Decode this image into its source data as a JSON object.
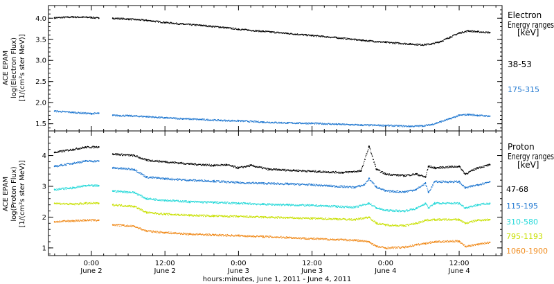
{
  "x_axis": {
    "title": "hours:minutes, June  1, 2011 - June  4, 2011",
    "ticks": [
      {
        "t": 24,
        "time": "0:00",
        "date": "June 2"
      },
      {
        "t": 36,
        "time": "12:00",
        "date": "June 2"
      },
      {
        "t": 48,
        "time": "0:00",
        "date": "June 3"
      },
      {
        "t": 60,
        "time": "12:00",
        "date": "June 3"
      },
      {
        "t": 72,
        "time": "0:00",
        "date": "June 4"
      },
      {
        "t": 84,
        "time": "12:00",
        "date": "June 4"
      }
    ]
  },
  "panels": [
    {
      "ylabel": [
        "ACE EPAM",
        "log(Electron Flux)",
        "[1/(cm²s ster MeV)]"
      ],
      "legend_title": [
        "Electron",
        "Energy ranges",
        "[keV]"
      ],
      "yticks": [
        "1.5",
        "2.0",
        "2.5",
        "3.0",
        "3.5",
        "4.0"
      ]
    },
    {
      "ylabel": [
        "ACE EPAM",
        "log(Proton Flux)",
        "[1/(cm²s ster MeV)]"
      ],
      "legend_title": [
        "Proton",
        "Energy ranges",
        "[keV]"
      ],
      "yticks": [
        "1",
        "2",
        "3",
        "4"
      ]
    }
  ],
  "chart_data": [
    {
      "type": "scatter",
      "x_unit": "hours since 2011-06-01 00:00",
      "xlim": [
        17,
        91
      ],
      "ylim": [
        1.33,
        4.3
      ],
      "grid": false,
      "legend_position": "right",
      "series": [
        {
          "name": "38-53",
          "color": "#000000",
          "points": [
            [
              18,
              4.01
            ],
            [
              21,
              4.03
            ],
            [
              24,
              4.02
            ],
            [
              25.2,
              4.0
            ],
            [
              27.5,
              4.0
            ],
            [
              30,
              3.98
            ],
            [
              33,
              3.95
            ],
            [
              36,
              3.9
            ],
            [
              39,
              3.86
            ],
            [
              42,
              3.83
            ],
            [
              45,
              3.79
            ],
            [
              48,
              3.74
            ],
            [
              52,
              3.69
            ],
            [
              56,
              3.64
            ],
            [
              60,
              3.59
            ],
            [
              64,
              3.54
            ],
            [
              68,
              3.48
            ],
            [
              72,
              3.43
            ],
            [
              76,
              3.39
            ],
            [
              78,
              3.37
            ],
            [
              79.5,
              3.39
            ],
            [
              81,
              3.45
            ],
            [
              82.5,
              3.55
            ],
            [
              84,
              3.65
            ],
            [
              85.5,
              3.7
            ],
            [
              87,
              3.68
            ],
            [
              89,
              3.66
            ]
          ]
        },
        {
          "name": "175-315",
          "color": "#1f77d0",
          "points": [
            [
              18,
              1.8
            ],
            [
              21,
              1.77
            ],
            [
              24,
              1.74
            ],
            [
              25.2,
              1.75
            ],
            [
              27.5,
              1.7
            ],
            [
              30,
              1.69
            ],
            [
              33,
              1.67
            ],
            [
              36,
              1.64
            ],
            [
              39,
              1.62
            ],
            [
              42,
              1.6
            ],
            [
              45,
              1.58
            ],
            [
              48,
              1.57
            ],
            [
              52,
              1.54
            ],
            [
              56,
              1.52
            ],
            [
              60,
              1.51
            ],
            [
              64,
              1.49
            ],
            [
              68,
              1.47
            ],
            [
              72,
              1.46
            ],
            [
              76,
              1.44
            ],
            [
              78,
              1.45
            ],
            [
              79.5,
              1.48
            ],
            [
              81,
              1.55
            ],
            [
              82.5,
              1.62
            ],
            [
              84,
              1.7
            ],
            [
              85.5,
              1.72
            ],
            [
              87,
              1.7
            ],
            [
              89,
              1.68
            ]
          ]
        }
      ]
    },
    {
      "type": "scatter",
      "x_unit": "hours since 2011-06-01 00:00",
      "xlim": [
        17,
        91
      ],
      "ylim": [
        0.75,
        4.8
      ],
      "grid": false,
      "legend_position": "right",
      "series": [
        {
          "name": "47-68",
          "color": "#000000",
          "points": [
            [
              18,
              4.1
            ],
            [
              21,
              4.2
            ],
            [
              23,
              4.27
            ],
            [
              25.2,
              4.28
            ],
            [
              27.5,
              4.05
            ],
            [
              31,
              4.0
            ],
            [
              33,
              3.85
            ],
            [
              36,
              3.8
            ],
            [
              40,
              3.73
            ],
            [
              44,
              3.68
            ],
            [
              46,
              3.7
            ],
            [
              48,
              3.6
            ],
            [
              50,
              3.68
            ],
            [
              53,
              3.55
            ],
            [
              57,
              3.52
            ],
            [
              61,
              3.48
            ],
            [
              65,
              3.45
            ],
            [
              68,
              3.5
            ],
            [
              69.3,
              4.3
            ],
            [
              70.5,
              3.55
            ],
            [
              72,
              3.4
            ],
            [
              75,
              3.35
            ],
            [
              77,
              3.4
            ],
            [
              78.5,
              3.3
            ],
            [
              79,
              3.65
            ],
            [
              80,
              3.6
            ],
            [
              84,
              3.65
            ],
            [
              85,
              3.4
            ],
            [
              87,
              3.6
            ],
            [
              89,
              3.7
            ]
          ]
        },
        {
          "name": "115-195",
          "color": "#1f77d0",
          "points": [
            [
              18,
              3.65
            ],
            [
              21,
              3.75
            ],
            [
              23,
              3.82
            ],
            [
              25.2,
              3.82
            ],
            [
              27.5,
              3.6
            ],
            [
              31,
              3.55
            ],
            [
              33,
              3.3
            ],
            [
              36,
              3.25
            ],
            [
              40,
              3.2
            ],
            [
              44,
              3.17
            ],
            [
              48,
              3.12
            ],
            [
              52,
              3.1
            ],
            [
              56,
              3.08
            ],
            [
              60,
              3.05
            ],
            [
              64,
              3.0
            ],
            [
              67,
              2.97
            ],
            [
              68.5,
              3.05
            ],
            [
              69.3,
              3.25
            ],
            [
              70.5,
              2.98
            ],
            [
              72,
              2.85
            ],
            [
              75,
              2.82
            ],
            [
              77,
              2.9
            ],
            [
              78.5,
              3.1
            ],
            [
              79,
              2.8
            ],
            [
              80,
              3.15
            ],
            [
              84,
              3.15
            ],
            [
              85,
              2.95
            ],
            [
              87,
              3.05
            ],
            [
              89,
              3.15
            ]
          ]
        },
        {
          "name": "310-580",
          "color": "#22d8d8",
          "points": [
            [
              18,
              2.9
            ],
            [
              21,
              2.95
            ],
            [
              23,
              3.02
            ],
            [
              25.2,
              3.02
            ],
            [
              27.5,
              2.85
            ],
            [
              31,
              2.8
            ],
            [
              33,
              2.6
            ],
            [
              36,
              2.55
            ],
            [
              40,
              2.5
            ],
            [
              44,
              2.48
            ],
            [
              48,
              2.45
            ],
            [
              52,
              2.42
            ],
            [
              56,
              2.4
            ],
            [
              60,
              2.38
            ],
            [
              64,
              2.35
            ],
            [
              67,
              2.32
            ],
            [
              69.3,
              2.45
            ],
            [
              70.5,
              2.3
            ],
            [
              72,
              2.22
            ],
            [
              75,
              2.2
            ],
            [
              77,
              2.28
            ],
            [
              78.5,
              2.45
            ],
            [
              79,
              2.3
            ],
            [
              80,
              2.45
            ],
            [
              84,
              2.45
            ],
            [
              85,
              2.3
            ],
            [
              87,
              2.4
            ],
            [
              89,
              2.45
            ]
          ]
        },
        {
          "name": "795-1193",
          "color": "#c8e000",
          "points": [
            [
              18,
              2.45
            ],
            [
              21,
              2.42
            ],
            [
              23,
              2.45
            ],
            [
              25.2,
              2.45
            ],
            [
              27.5,
              2.4
            ],
            [
              31,
              2.35
            ],
            [
              33,
              2.15
            ],
            [
              36,
              2.1
            ],
            [
              40,
              2.06
            ],
            [
              44,
              2.04
            ],
            [
              48,
              2.02
            ],
            [
              52,
              2.0
            ],
            [
              56,
              1.98
            ],
            [
              60,
              1.96
            ],
            [
              64,
              1.94
            ],
            [
              67,
              1.92
            ],
            [
              69.3,
              2.0
            ],
            [
              70.5,
              1.8
            ],
            [
              72,
              1.75
            ],
            [
              75,
              1.72
            ],
            [
              77,
              1.8
            ],
            [
              78.5,
              1.9
            ],
            [
              80,
              1.92
            ],
            [
              84,
              1.92
            ],
            [
              85,
              1.8
            ],
            [
              87,
              1.9
            ],
            [
              89,
              1.92
            ]
          ]
        },
        {
          "name": "1060-1900",
          "color": "#f08a1a",
          "points": [
            [
              18,
              1.85
            ],
            [
              21,
              1.88
            ],
            [
              23,
              1.9
            ],
            [
              25.2,
              1.9
            ],
            [
              27.5,
              1.75
            ],
            [
              31,
              1.7
            ],
            [
              33,
              1.55
            ],
            [
              36,
              1.5
            ],
            [
              40,
              1.45
            ],
            [
              44,
              1.42
            ],
            [
              48,
              1.4
            ],
            [
              52,
              1.37
            ],
            [
              56,
              1.34
            ],
            [
              60,
              1.3
            ],
            [
              64,
              1.27
            ],
            [
              67,
              1.25
            ],
            [
              69.3,
              1.2
            ],
            [
              70.5,
              1.05
            ],
            [
              72,
              1.0
            ],
            [
              75,
              1.02
            ],
            [
              77,
              1.1
            ],
            [
              78.5,
              1.15
            ],
            [
              80,
              1.2
            ],
            [
              84,
              1.22
            ],
            [
              85,
              1.05
            ],
            [
              87,
              1.12
            ],
            [
              89,
              1.18
            ]
          ]
        }
      ]
    }
  ]
}
